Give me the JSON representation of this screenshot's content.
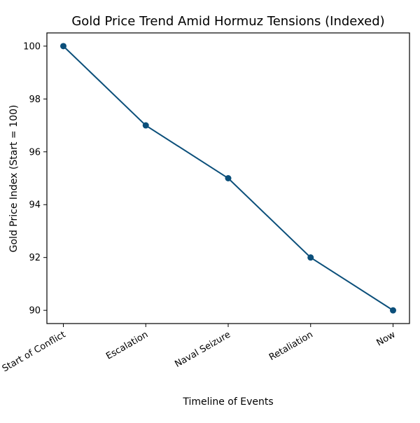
{
  "chart_data": {
    "type": "line",
    "title": "Gold Price Trend Amid Hormuz Tensions (Indexed)",
    "xlabel": "Timeline of Events",
    "ylabel": "Gold Price Index (Start = 100)",
    "categories": [
      "Start of Conflict",
      "Escalation",
      "Naval Seizure",
      "Retaliation",
      "Now"
    ],
    "series": [
      {
        "values": [
          100,
          97,
          95,
          92,
          90
        ]
      }
    ],
    "ylim": [
      89.5,
      100.5
    ],
    "yticks": [
      "90",
      "92",
      "94",
      "96",
      "98",
      "100"
    ],
    "grid": false,
    "colors": {
      "line": "#0b4f7a",
      "marker": "#0b4f7a",
      "axis": "#000000"
    }
  }
}
